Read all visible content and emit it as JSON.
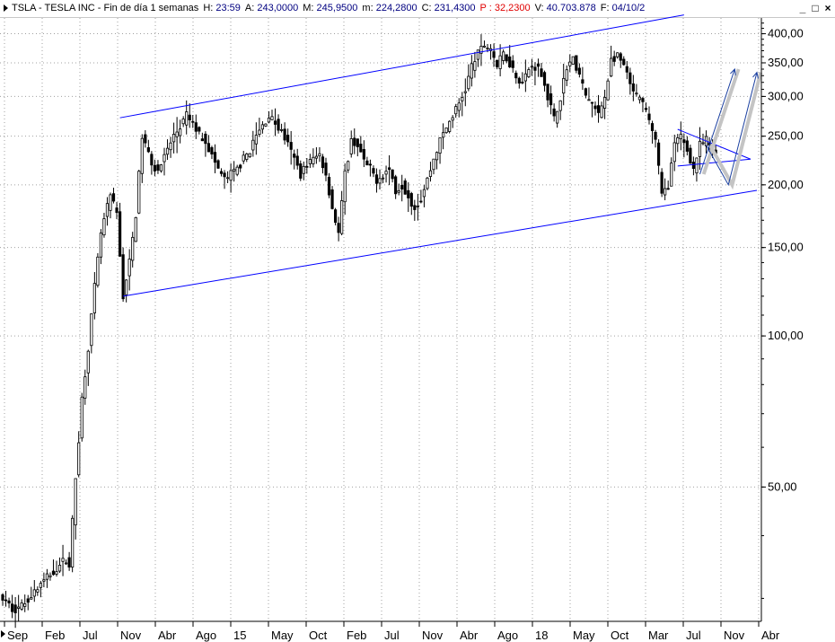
{
  "header": {
    "symbol": "TSLA",
    "name": "TESLA INC",
    "period": "Fin de día 1 semanas",
    "fields": [
      {
        "label": "H:",
        "value": "23:59",
        "color": "normal"
      },
      {
        "label": "A:",
        "value": "243,0000",
        "color": "normal"
      },
      {
        "label": "M:",
        "value": "245,9500",
        "color": "normal"
      },
      {
        "label": "m:",
        "value": "224,2800",
        "color": "normal"
      },
      {
        "label": "C:",
        "value": "231,4300",
        "color": "normal"
      },
      {
        "label": "P :",
        "value": "32,2300",
        "color": "red"
      },
      {
        "label": "V:",
        "value": "40.703.878",
        "color": "normal"
      },
      {
        "label": "F:",
        "value": "04/10/2",
        "color": "normal"
      }
    ],
    "controls": [
      "_",
      "□",
      "×"
    ]
  },
  "chart_data": {
    "type": "candlestick",
    "scale": "log",
    "ylim": [
      27,
      430
    ],
    "y_ticks": [
      {
        "value": 400,
        "label": "400,00"
      },
      {
        "value": 350,
        "label": "350,00"
      },
      {
        "value": 300,
        "label": "300,00"
      },
      {
        "value": 250,
        "label": "250,00"
      },
      {
        "value": 200,
        "label": "200,00"
      },
      {
        "value": 150,
        "label": "150,00"
      },
      {
        "value": 100,
        "label": "100,00"
      },
      {
        "value": 50,
        "label": "50,00"
      }
    ],
    "x_ticks": [
      "Sep",
      "Feb",
      "Jul",
      "Nov",
      "Abr",
      "Ago",
      "15",
      "May",
      "Oct",
      "Feb",
      "Jul",
      "Nov",
      "Abr",
      "Ago",
      "18",
      "May",
      "Oct",
      "Mar",
      "Jul",
      "Nov",
      "Abr"
    ],
    "x_range": [
      0,
      238
    ],
    "last_bar": 225,
    "price_anchors": [
      [
        0,
        30
      ],
      [
        2,
        29
      ],
      [
        4,
        28.5
      ],
      [
        6,
        29
      ],
      [
        8,
        30
      ],
      [
        10,
        31
      ],
      [
        12,
        32
      ],
      [
        14,
        33
      ],
      [
        16,
        34
      ],
      [
        18,
        35
      ],
      [
        20,
        36
      ],
      [
        21,
        35
      ],
      [
        23,
        52
      ],
      [
        25,
        75
      ],
      [
        27,
        95
      ],
      [
        29,
        125
      ],
      [
        31,
        160
      ],
      [
        33,
        180
      ],
      [
        34,
        190
      ],
      [
        36,
        175
      ],
      [
        38,
        120
      ],
      [
        40,
        140
      ],
      [
        42,
        175
      ],
      [
        44,
        250
      ],
      [
        46,
        230
      ],
      [
        48,
        215
      ],
      [
        50,
        220
      ],
      [
        52,
        235
      ],
      [
        54,
        250
      ],
      [
        56,
        260
      ],
      [
        58,
        275
      ],
      [
        60,
        265
      ],
      [
        62,
        252
      ],
      [
        64,
        245
      ],
      [
        66,
        228
      ],
      [
        68,
        215
      ],
      [
        70,
        205
      ],
      [
        72,
        210
      ],
      [
        74,
        215
      ],
      [
        76,
        225
      ],
      [
        78,
        235
      ],
      [
        80,
        250
      ],
      [
        82,
        262
      ],
      [
        84,
        275
      ],
      [
        86,
        265
      ],
      [
        88,
        255
      ],
      [
        90,
        240
      ],
      [
        92,
        225
      ],
      [
        94,
        210
      ],
      [
        96,
        220
      ],
      [
        98,
        225
      ],
      [
        100,
        230
      ],
      [
        102,
        210
      ],
      [
        104,
        180
      ],
      [
        106,
        160
      ],
      [
        108,
        210
      ],
      [
        110,
        245
      ],
      [
        112,
        240
      ],
      [
        114,
        222
      ],
      [
        116,
        215
      ],
      [
        118,
        205
      ],
      [
        120,
        210
      ],
      [
        122,
        215
      ],
      [
        124,
        195
      ],
      [
        126,
        200
      ],
      [
        128,
        190
      ],
      [
        130,
        180
      ],
      [
        132,
        188
      ],
      [
        134,
        205
      ],
      [
        136,
        225
      ],
      [
        138,
        245
      ],
      [
        140,
        260
      ],
      [
        142,
        275
      ],
      [
        144,
        290
      ],
      [
        146,
        310
      ],
      [
        148,
        345
      ],
      [
        150,
        365
      ],
      [
        152,
        380
      ],
      [
        154,
        375
      ],
      [
        156,
        345
      ],
      [
        158,
        365
      ],
      [
        160,
        350
      ],
      [
        162,
        330
      ],
      [
        164,
        320
      ],
      [
        166,
        340
      ],
      [
        168,
        345
      ],
      [
        170,
        335
      ],
      [
        172,
        300
      ],
      [
        174,
        270
      ],
      [
        176,
        300
      ],
      [
        178,
        345
      ],
      [
        180,
        355
      ],
      [
        182,
        330
      ],
      [
        184,
        300
      ],
      [
        186,
        290
      ],
      [
        188,
        275
      ],
      [
        190,
        300
      ],
      [
        192,
        355
      ],
      [
        194,
        360
      ],
      [
        196,
        345
      ],
      [
        198,
        315
      ],
      [
        200,
        300
      ],
      [
        202,
        290
      ],
      [
        204,
        270
      ],
      [
        206,
        245
      ],
      [
        208,
        190
      ],
      [
        210,
        200
      ],
      [
        212,
        240
      ],
      [
        214,
        250
      ],
      [
        216,
        235
      ],
      [
        218,
        215
      ],
      [
        220,
        240
      ],
      [
        222,
        245
      ],
      [
        224,
        235
      ],
      [
        225,
        231
      ]
    ],
    "bars": 226,
    "annotations": {
      "channel_upper": [
        [
          37,
          272
        ],
        [
          215,
          436
        ]
      ],
      "channel_lower": [
        [
          38,
          120
        ],
        [
          238,
          195
        ]
      ],
      "triangle_upper": [
        [
          213,
          258
        ],
        [
          236,
          225
        ]
      ],
      "triangle_lower": [
        [
          213,
          218
        ],
        [
          236,
          225
        ]
      ],
      "projection_1": [
        [
          220,
          210
        ],
        [
          231,
          340
        ]
      ],
      "projection_2": [
        [
          222,
          240
        ],
        [
          229,
          200
        ],
        [
          238,
          335
        ]
      ]
    },
    "colors": {
      "candles": "#000000",
      "trendlines": "#0000ff",
      "projections": "#1a3fa0",
      "projection_shadow": "#c4c4c4",
      "grid": "#a0a0a0"
    }
  }
}
